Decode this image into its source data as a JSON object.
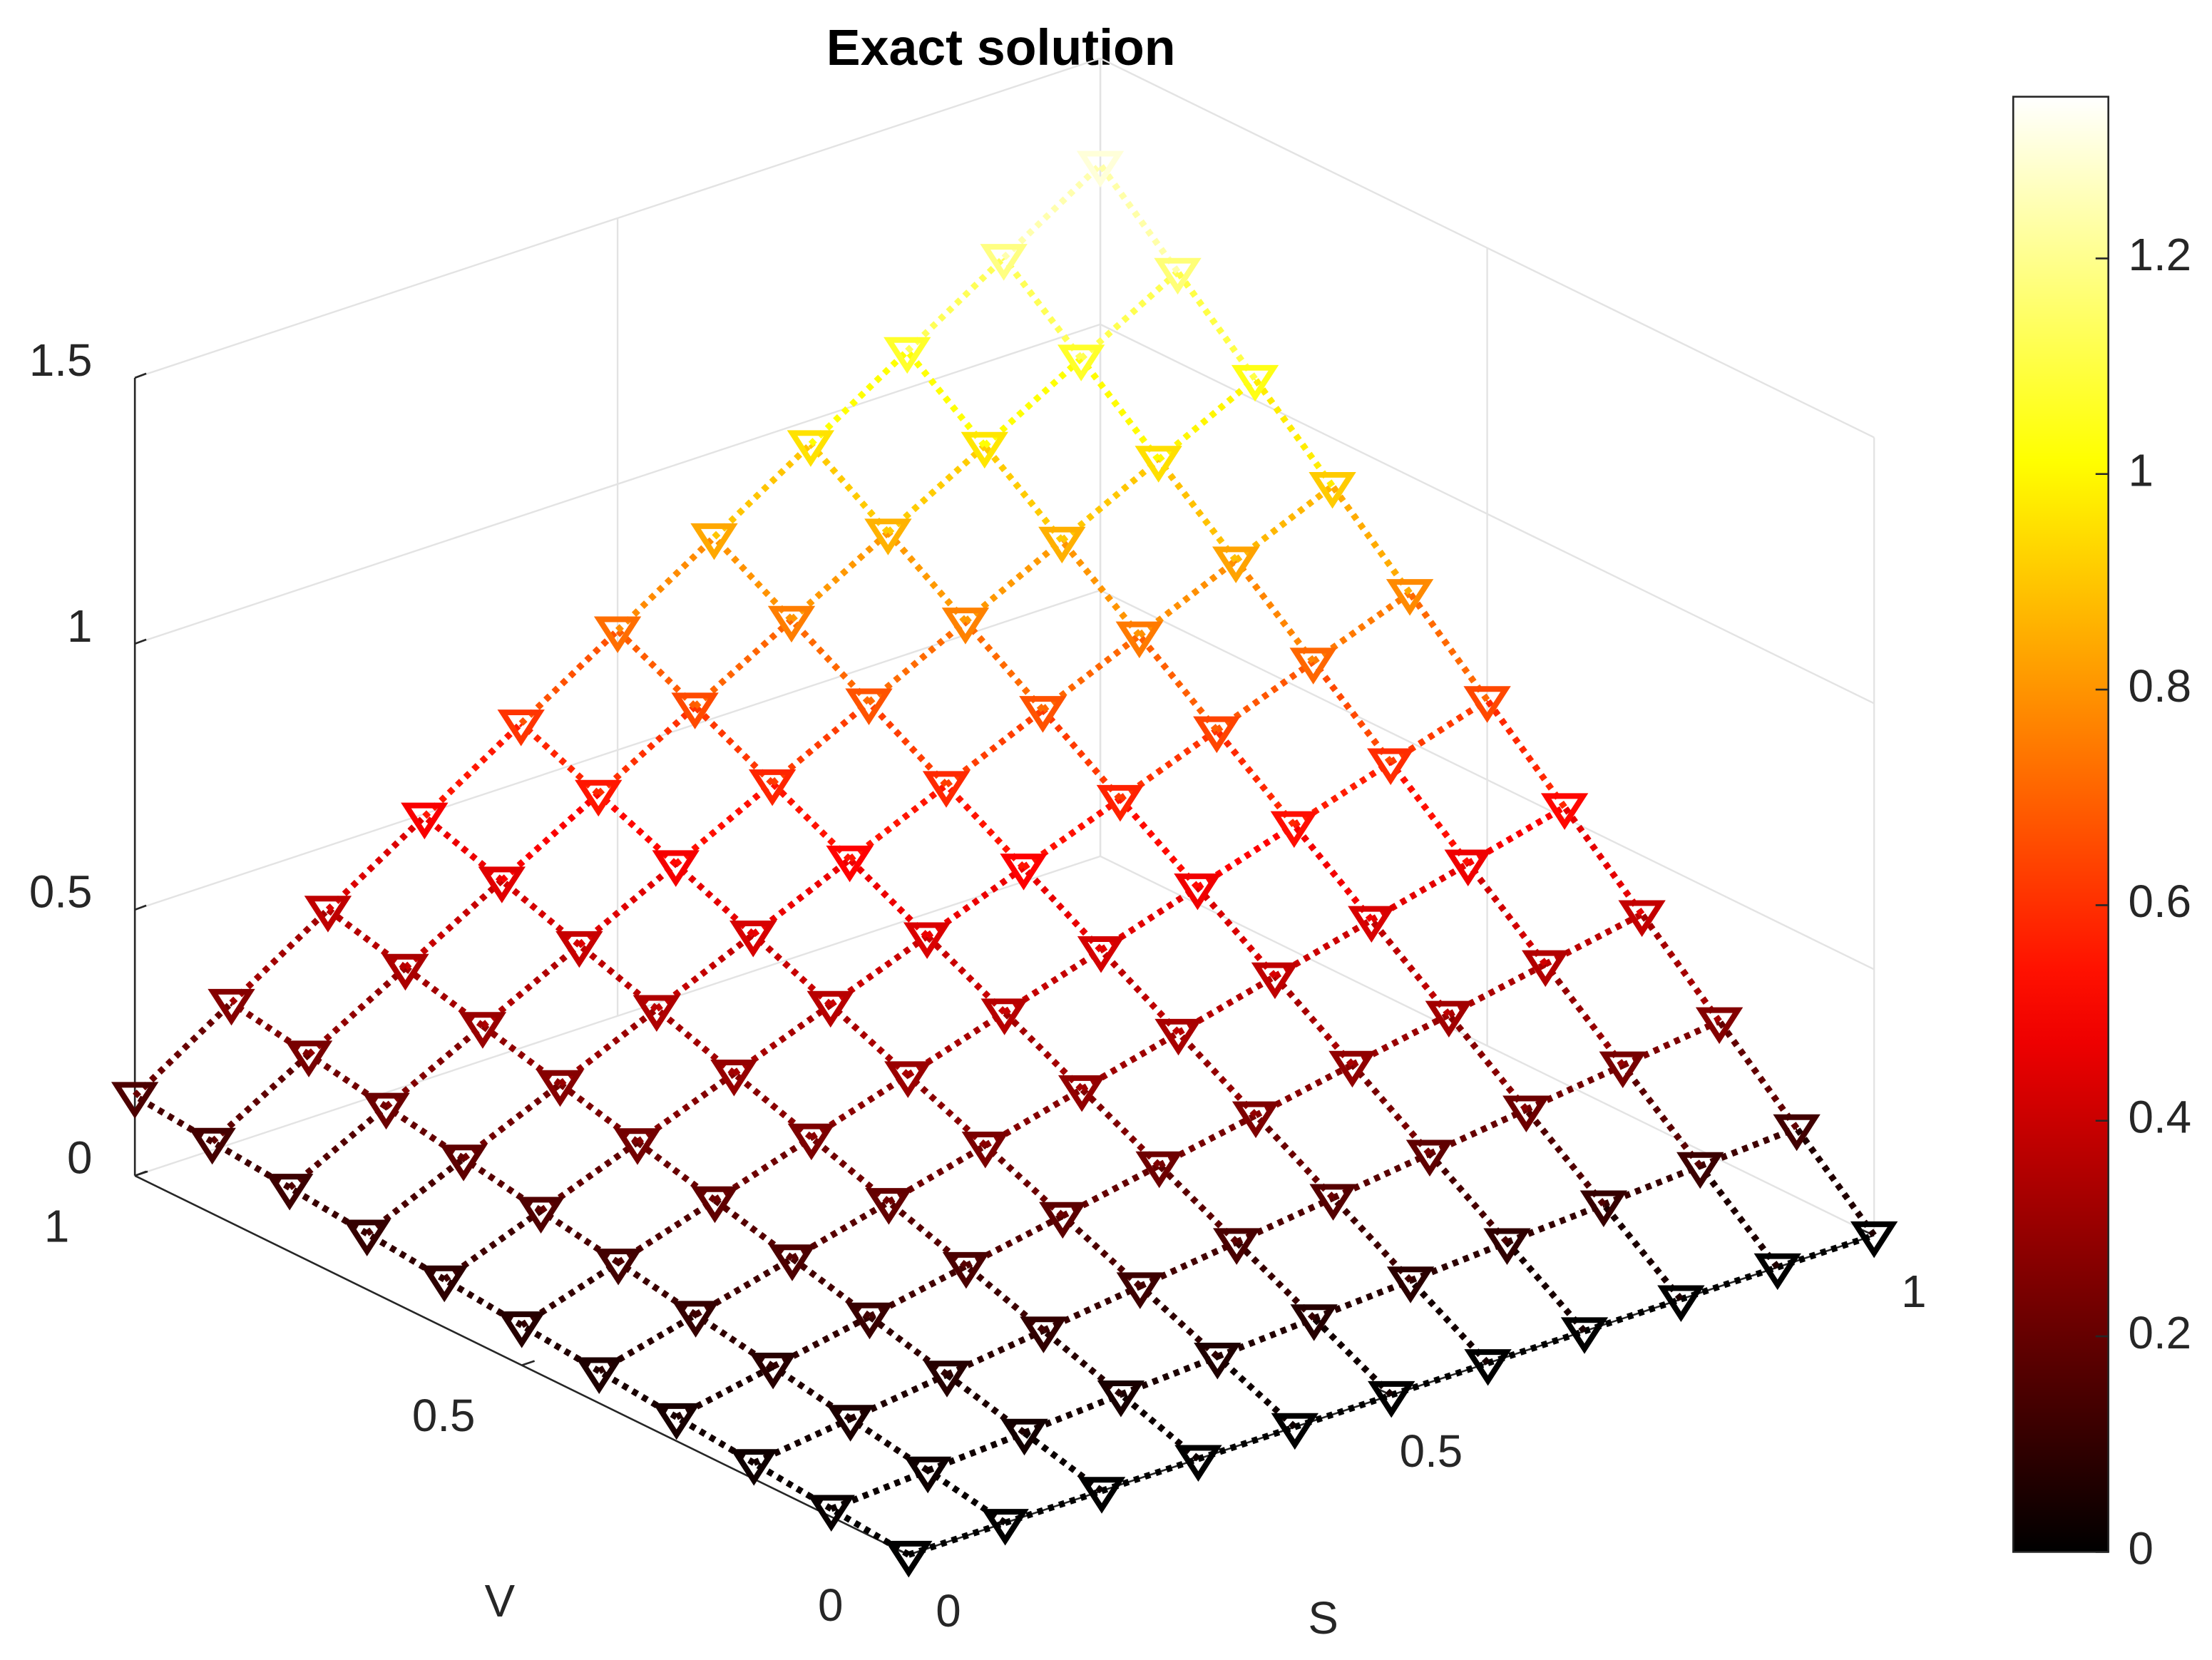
{
  "chart_data": {
    "type": "surface",
    "title": "Exact solution",
    "xlabel": "S",
    "ylabel": "V",
    "x": [
      0,
      0.1,
      0.2,
      0.3,
      0.4,
      0.5,
      0.6,
      0.7,
      0.8,
      0.9,
      1
    ],
    "y": [
      0,
      0.1,
      0.2,
      0.3,
      0.4,
      0.5,
      0.6,
      0.7,
      0.8,
      0.9,
      1
    ],
    "z": [
      [
        0,
        0,
        0,
        0,
        0,
        0,
        0,
        0,
        0,
        0,
        0
      ],
      [
        0.015,
        0.027,
        0.038,
        0.05,
        0.061,
        0.073,
        0.084,
        0.096,
        0.107,
        0.119,
        0.13
      ],
      [
        0.03,
        0.053,
        0.076,
        0.099,
        0.122,
        0.145,
        0.168,
        0.191,
        0.214,
        0.237,
        0.26
      ],
      [
        0.045,
        0.08,
        0.114,
        0.149,
        0.183,
        0.218,
        0.252,
        0.287,
        0.321,
        0.356,
        0.39
      ],
      [
        0.06,
        0.106,
        0.152,
        0.198,
        0.244,
        0.29,
        0.336,
        0.382,
        0.428,
        0.474,
        0.52
      ],
      [
        0.075,
        0.133,
        0.19,
        0.248,
        0.305,
        0.363,
        0.42,
        0.478,
        0.535,
        0.593,
        0.65
      ],
      [
        0.09,
        0.159,
        0.228,
        0.297,
        0.366,
        0.435,
        0.504,
        0.573,
        0.642,
        0.711,
        0.78
      ],
      [
        0.105,
        0.186,
        0.266,
        0.347,
        0.427,
        0.508,
        0.588,
        0.669,
        0.749,
        0.83,
        0.91
      ],
      [
        0.12,
        0.212,
        0.304,
        0.396,
        0.488,
        0.58,
        0.672,
        0.764,
        0.856,
        0.948,
        1.04
      ],
      [
        0.135,
        0.239,
        0.342,
        0.446,
        0.549,
        0.653,
        0.756,
        0.86,
        0.963,
        1.067,
        1.17
      ],
      [
        0.15,
        0.265,
        0.38,
        0.495,
        0.61,
        0.725,
        0.84,
        0.955,
        1.07,
        1.185,
        1.3
      ]
    ],
    "xlim": [
      0,
      1
    ],
    "xticks": [
      0,
      0.5,
      1
    ],
    "ylim": [
      0,
      1
    ],
    "yticks": [
      0,
      0.5,
      1
    ],
    "zlim": [
      0,
      1.5
    ],
    "zticks": [
      0,
      0.5,
      1,
      1.5
    ],
    "colormap": "hot",
    "clim": [
      0,
      1.35
    ],
    "cticks": [
      0,
      0.2,
      0.4,
      0.6,
      0.8,
      1,
      1.2
    ],
    "grid": true,
    "marker": "triangle-down",
    "line_style": "dotted"
  }
}
